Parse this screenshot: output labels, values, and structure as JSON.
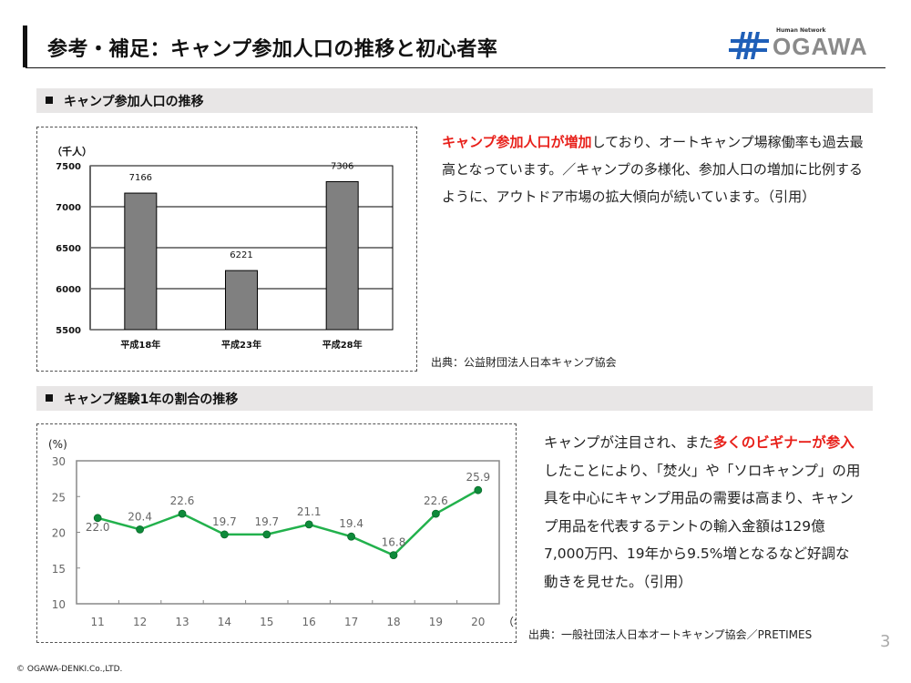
{
  "header": {
    "title": "参考・補足：キャンプ参加人口の推移と初心者率",
    "logo": {
      "tagline": "Human Network",
      "wordmark": "OGAWA",
      "brand_color": "#1f5fb8"
    }
  },
  "section1": {
    "heading": "キャンプ参加人口の推移",
    "paragraph": {
      "highlight": "キャンプ参加人口が増加",
      "rest": "しており、オートキャンプ場稼働率も過去最高となっています。／キャンプの多様化、参加人口の増加に比例するように、アウトドア市場の拡大傾向が続いています。（引用）"
    },
    "source": "出典：公益財団法人日本キャンプ協会"
  },
  "section2": {
    "heading": "キャンプ経験1年の割合の推移",
    "paragraph": {
      "lead": "キャンプが注目され、また",
      "highlight": "多くのビギナーが参入",
      "rest": "したことにより、「焚火」や「ソロキャンプ」の用具を中心にキャンプ用品の需要は高まり、キャンプ用品を代表するテントの輸入金額は129億7,000万円、19年から9.5%増となるなど好調な動きを見せた。（引用）"
    },
    "source": "出典：一般社団法人日本オートキャンプ協会／PRETIMES"
  },
  "footer": {
    "page_number": "3",
    "copyright": "© OGAWA-DENKI.Co.,LTD."
  },
  "colors": {
    "highlight_red": "#e8201a",
    "bar_gray": "#808080",
    "line_green": "#22b14c",
    "marker_green": "#0e8a3a"
  },
  "chart_data": [
    {
      "type": "bar",
      "title": "キャンプ参加人口の推移",
      "ylabel": "（千人）",
      "xlabel": "",
      "categories": [
        "平成18年",
        "平成23年",
        "平成28年"
      ],
      "values": [
        7166,
        6221,
        7306
      ],
      "value_labels": [
        "7166",
        "6221",
        "7306"
      ],
      "ylim": [
        5500,
        7500
      ],
      "yticks": [
        5500,
        6000,
        6500,
        7000,
        7500
      ],
      "ytick_labels": [
        "5500",
        "6000",
        "6500",
        "7000",
        "7500"
      ],
      "grid": true,
      "legend": "none"
    },
    {
      "type": "line",
      "title": "キャンプ経験1年の割合の推移",
      "ylabel": "(%)",
      "xlabel": "（年）",
      "x": [
        "11",
        "12",
        "13",
        "14",
        "15",
        "16",
        "17",
        "18",
        "19",
        "20"
      ],
      "values": [
        22.0,
        20.4,
        22.6,
        19.7,
        19.7,
        21.1,
        19.4,
        16.8,
        22.6,
        25.9
      ],
      "value_labels": [
        "22.0",
        "20.4",
        "22.6",
        "19.7",
        "19.7",
        "21.1",
        "19.4",
        "16.8",
        "22.6",
        "25.9"
      ],
      "ylim": [
        10,
        30
      ],
      "yticks": [
        10,
        15,
        20,
        25,
        30
      ],
      "ytick_labels": [
        "10",
        "15",
        "20",
        "25",
        "30"
      ],
      "grid": false,
      "legend": "none"
    }
  ]
}
